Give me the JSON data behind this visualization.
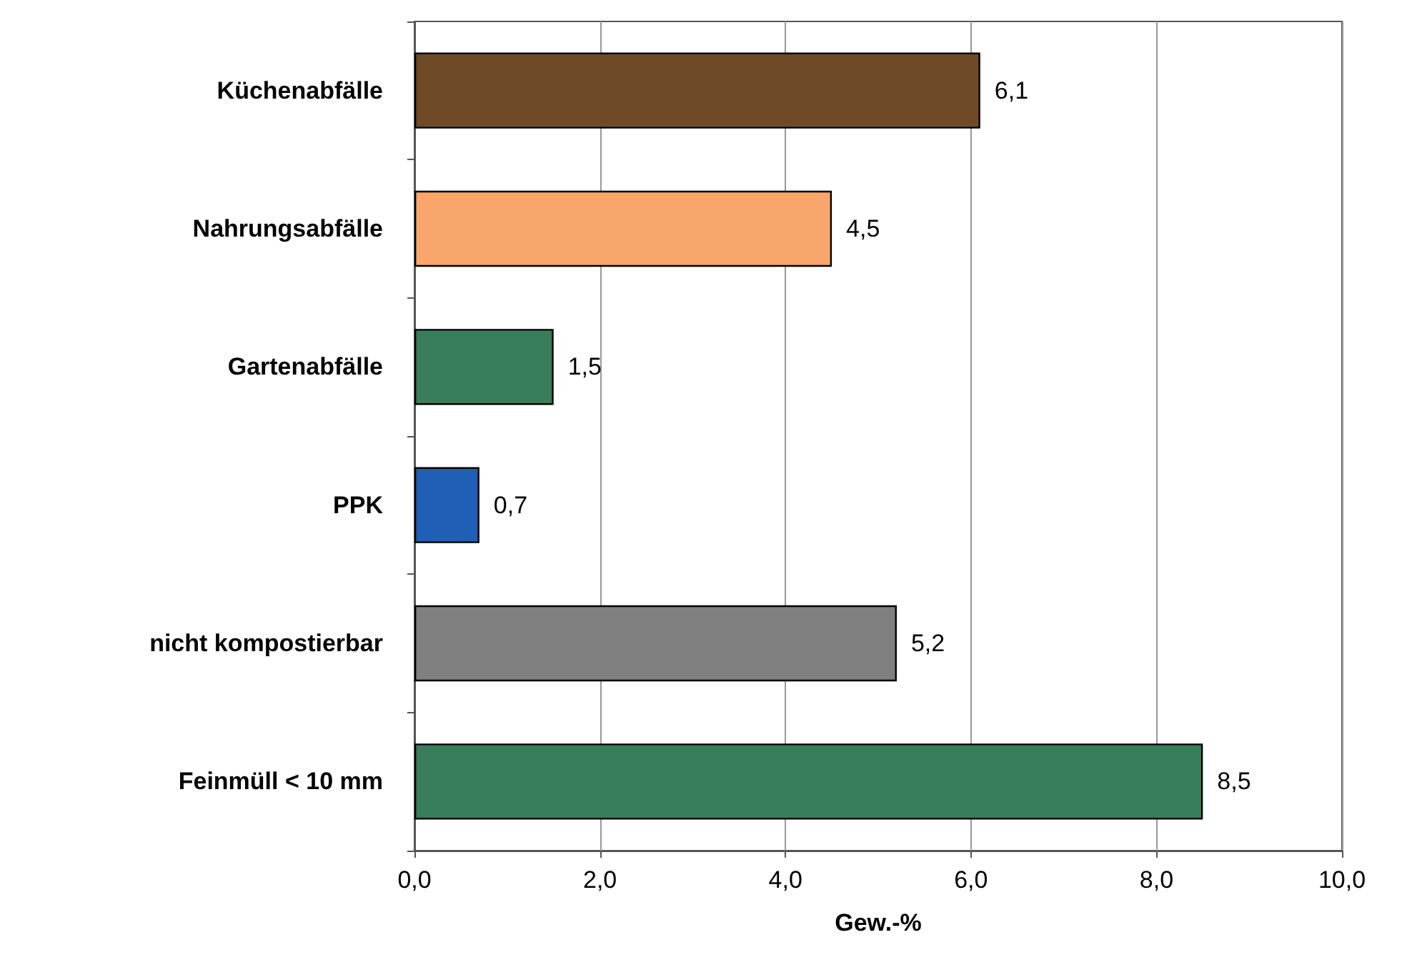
{
  "chart_data": {
    "type": "bar",
    "orientation": "horizontal",
    "xlabel": "Gew.-%",
    "categories": [
      "Küchenabfälle",
      "Nahrungsabfälle",
      "Gartenabfälle",
      "PPK",
      "nicht kompostierbar",
      "Feinmüll < 10 mm"
    ],
    "values": [
      6.1,
      4.5,
      1.5,
      0.7,
      5.2,
      8.5
    ],
    "colors": [
      "#6f4a26",
      "#f9a66c",
      "#3a7d5a",
      "#1f5fb5",
      "#808080",
      "#3a7d5a"
    ],
    "value_labels": [
      "6,1",
      "4,5",
      "1,5",
      "0,7",
      "5,2",
      "8,5"
    ],
    "xlim": [
      0,
      10
    ],
    "xticks": [
      {
        "value": 0,
        "label": "0,0"
      },
      {
        "value": 2,
        "label": "2,0"
      },
      {
        "value": 4,
        "label": "4,0"
      },
      {
        "value": 6,
        "label": "6,0"
      },
      {
        "value": 8,
        "label": "8,0"
      },
      {
        "value": 10,
        "label": "10,0"
      }
    ],
    "grid": "x"
  }
}
